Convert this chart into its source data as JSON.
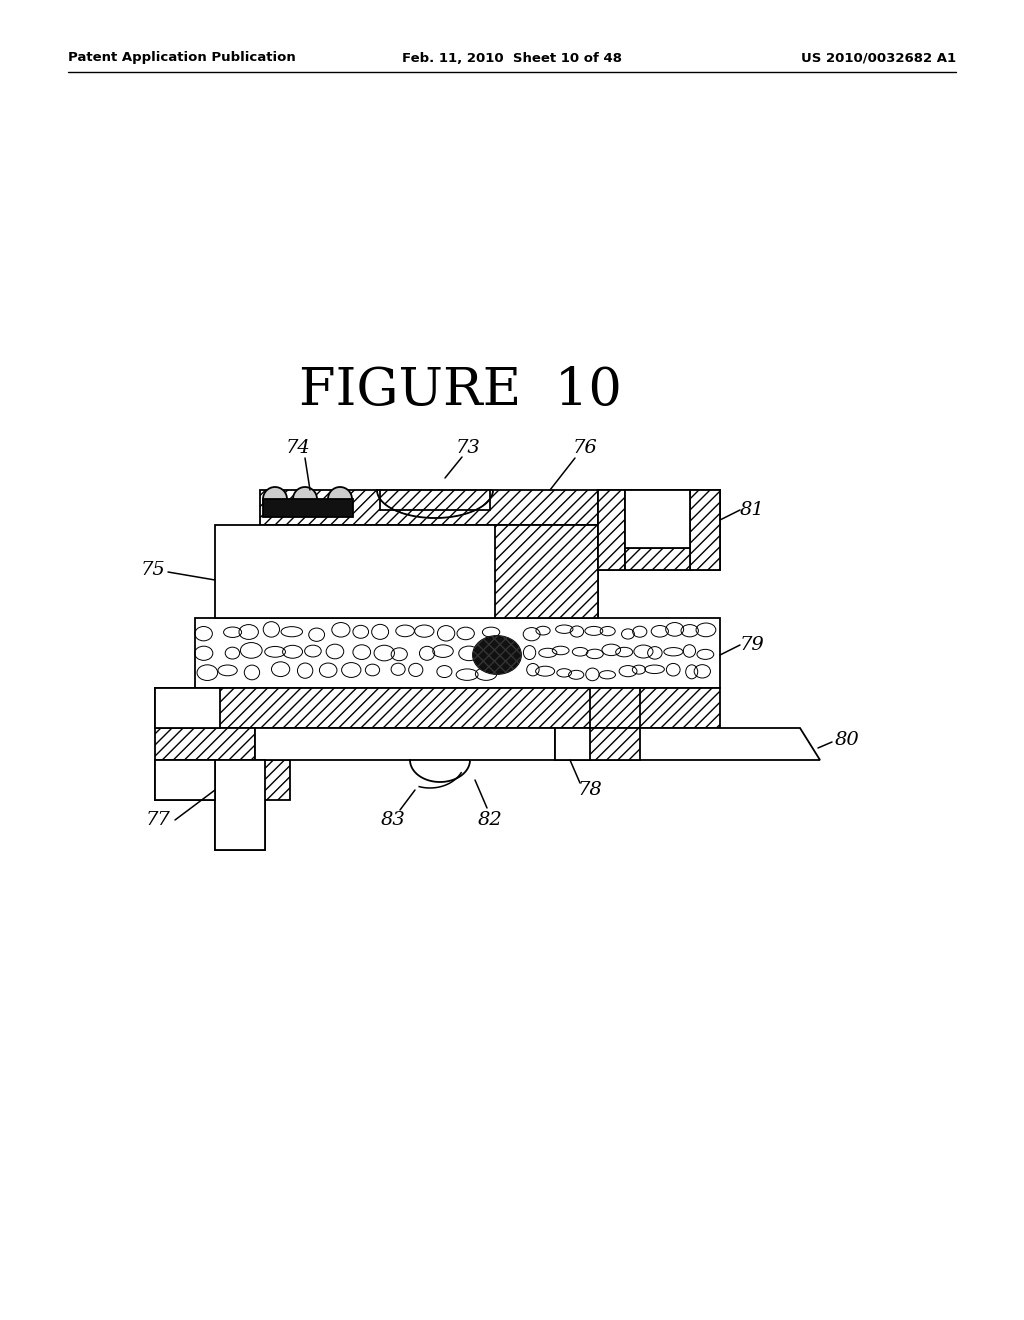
{
  "title": "FIGURE  10",
  "header_left": "Patent Application Publication",
  "header_center": "Feb. 11, 2010  Sheet 10 of 48",
  "header_right": "US 2010/0032682 A1",
  "bg_color": "#ffffff"
}
